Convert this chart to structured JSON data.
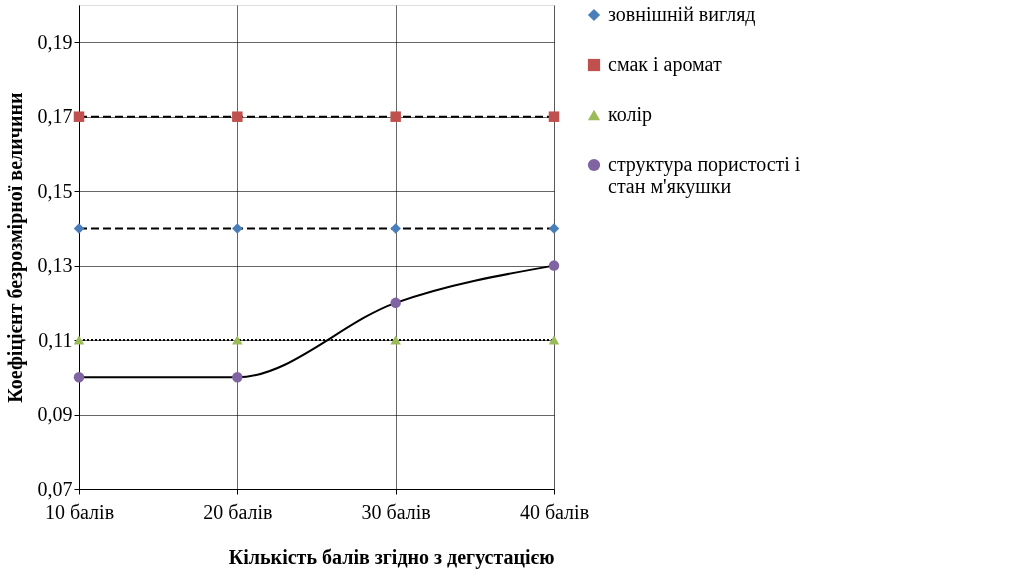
{
  "chart_data": {
    "type": "line",
    "xlabel": "Кількість балів згідно з дегустацією",
    "ylabel": "Коефіцієнт безрозмірної величини",
    "categories": [
      "10 балів",
      "20 балів",
      "30 балів",
      "40 балів"
    ],
    "ylim": [
      0.07,
      0.2
    ],
    "yticks": [
      {
        "value": 0.07,
        "label": "0,07"
      },
      {
        "value": 0.09,
        "label": "0,09"
      },
      {
        "value": 0.11,
        "label": "0,11"
      },
      {
        "value": 0.13,
        "label": "0,13"
      },
      {
        "value": 0.15,
        "label": "0,15"
      },
      {
        "value": 0.17,
        "label": "0,17"
      },
      {
        "value": 0.19,
        "label": "0,19"
      }
    ],
    "grid": true,
    "legend": "right",
    "series": [
      {
        "name": "зовнішній вигляд",
        "color": "#4a7ebb",
        "marker": "diamond",
        "line_style": "dashed",
        "values": [
          0.14,
          0.14,
          0.14,
          0.14
        ]
      },
      {
        "name": "смак і аромат",
        "color": "#c0504d",
        "marker": "square",
        "line_style": "dashed",
        "values": [
          0.17,
          0.17,
          0.17,
          0.17
        ]
      },
      {
        "name": "колір",
        "color": "#9bbb59",
        "marker": "triangle",
        "line_style": "dotted",
        "values": [
          0.11,
          0.11,
          0.11,
          0.11
        ]
      },
      {
        "name": "структура пористості і стан м'якушки",
        "color": "#8064a2",
        "marker": "circle",
        "line_style": "solid",
        "values": [
          0.1,
          0.1,
          0.12,
          0.13
        ]
      }
    ]
  }
}
